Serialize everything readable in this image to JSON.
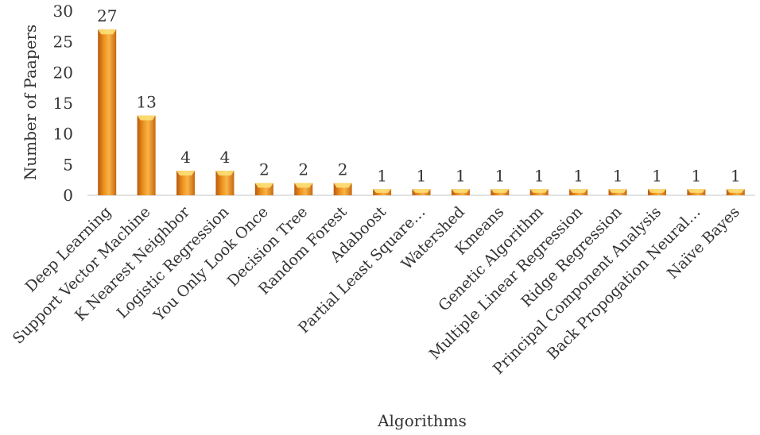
{
  "chart_data": {
    "type": "bar",
    "title": "",
    "xlabel": "Algorithms",
    "ylabel": "Number of Paapers",
    "categories": [
      "Deep Learning",
      "Support Vector Machine",
      "K Nearest Neighbor",
      "Logistic Regression",
      "You Only Look Once",
      "Decision Tree",
      "Random Forest",
      "Adaboost",
      "Partial Least Square…",
      "Watershed",
      "Kmeans",
      "Genetic Algorithm",
      "Multiple Linear Regression",
      "Ridge Regression",
      "Principal Component Analysis",
      "Back Propogation Neural…",
      "Naïve Bayes"
    ],
    "values": [
      27,
      13,
      4,
      4,
      2,
      2,
      2,
      1,
      1,
      1,
      1,
      1,
      1,
      1,
      1,
      1,
      1
    ],
    "ylim": [
      0,
      30
    ],
    "yticks": [
      0,
      5,
      10,
      15,
      20,
      25,
      30
    ],
    "grid": false,
    "legend": "none",
    "data_labels": true,
    "colors": {
      "bar_dark": "#b85a10",
      "bar_mid": "#f0951e",
      "bar_light": "#f8b448",
      "bar_top": "#fde078",
      "axis": "#d9d9d9",
      "text": "#333333"
    }
  }
}
